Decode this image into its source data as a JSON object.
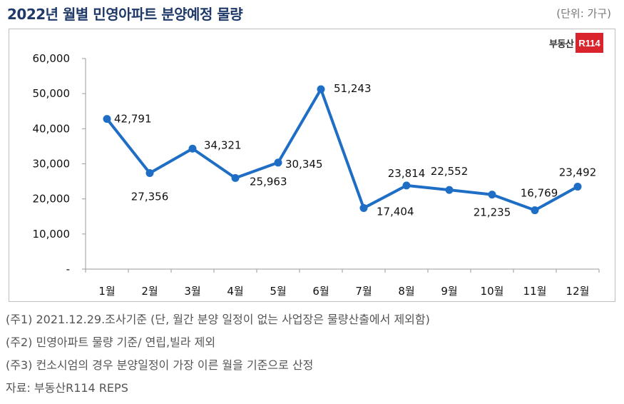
{
  "title": "2022년 월별 민영아파트 분양예정 물량",
  "unit": "(단위: 가구)",
  "logo": {
    "text": "부동산",
    "badge": "R114"
  },
  "notes": [
    "(주1) 2021.12.29.조사기준 (단, 월간 분양 일정이 없는 사업장은 물량산출에서 제외함)",
    "(주2) 민영아파트 물량 기준/ 연립,빌라 제외",
    "(주3) 컨소시엄의 경우 분양일정이 가장 이른 월을 기준으로 산정",
    "자료: 부동산R114 REPS"
  ],
  "chart_data": {
    "type": "line",
    "categories": [
      "1월",
      "2월",
      "3월",
      "4월",
      "5월",
      "6월",
      "7월",
      "8월",
      "9월",
      "10월",
      "11월",
      "12월"
    ],
    "values": [
      42791,
      27356,
      34321,
      25963,
      30345,
      51243,
      17404,
      23814,
      22552,
      21235,
      16769,
      23492
    ],
    "data_labels": [
      "42,791",
      "27,356",
      "34,321",
      "25,963",
      "30,345",
      "51,243",
      "17,404",
      "23,814",
      "22,552",
      "21,235",
      "16,769",
      "23,492"
    ],
    "yticks": [
      0,
      10000,
      20000,
      30000,
      40000,
      50000,
      60000
    ],
    "ytick_labels": [
      "-",
      "10,000",
      "20,000",
      "30,000",
      "40,000",
      "50,000",
      "60,000"
    ],
    "ylim": [
      0,
      60000
    ],
    "grid": false,
    "legend": "none",
    "line_color": "#1f6ec5"
  }
}
